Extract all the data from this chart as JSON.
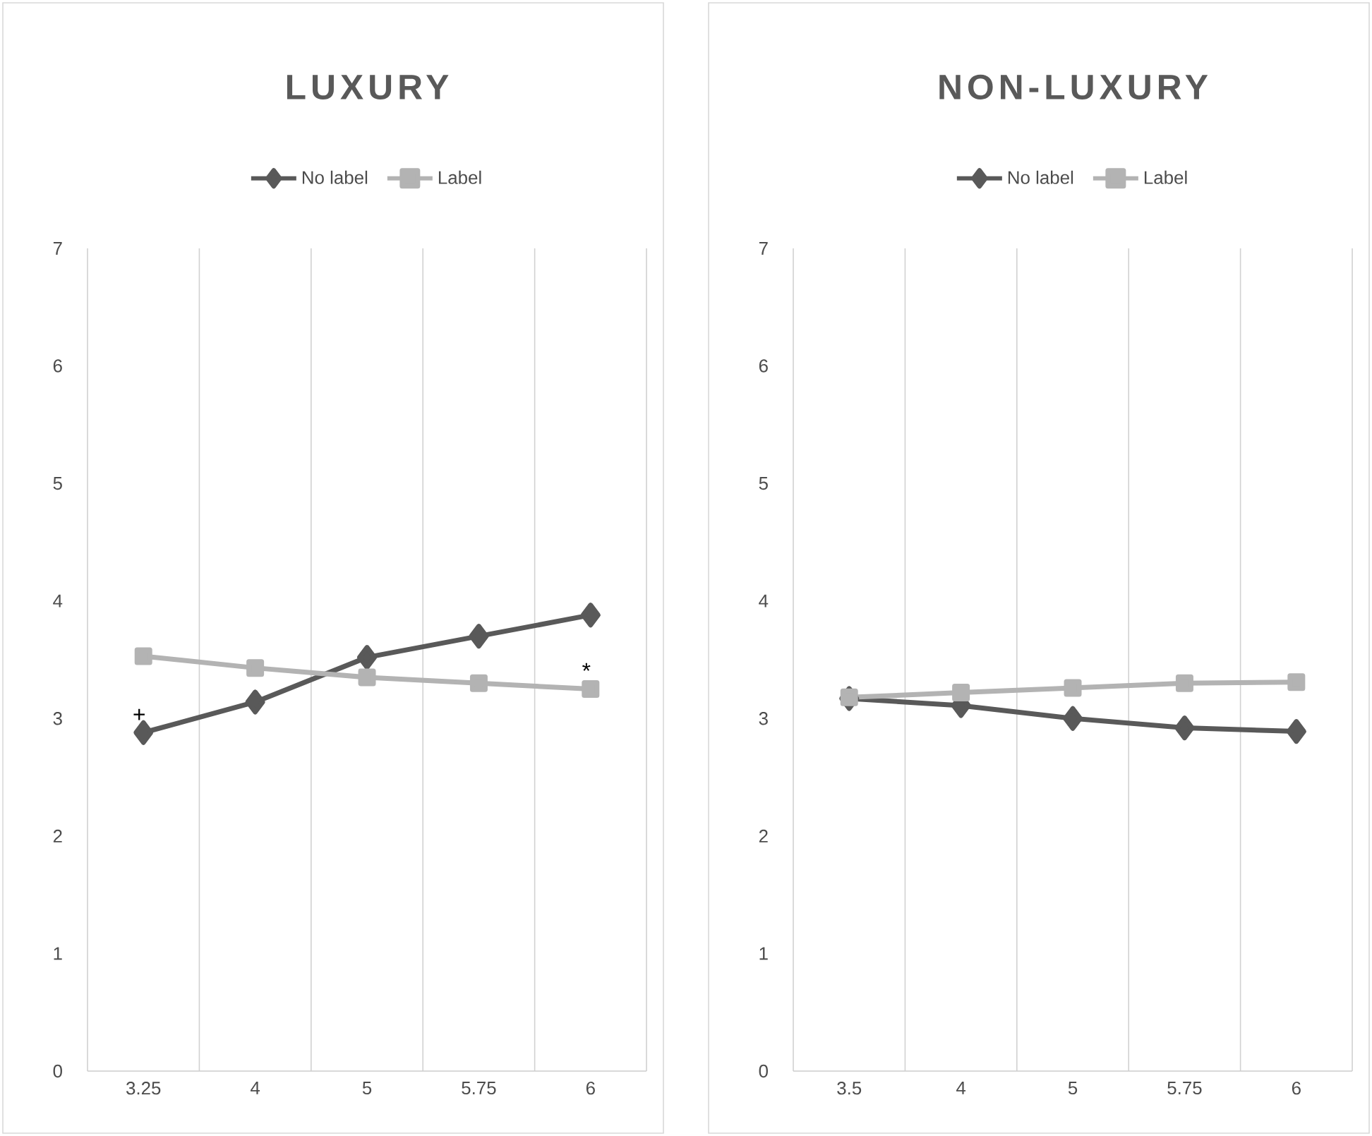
{
  "chart_data": [
    {
      "type": "line",
      "title": "LUXURY",
      "categories": [
        "3.25",
        "4",
        "5",
        "5.75",
        "6"
      ],
      "series": [
        {
          "name": "No label",
          "color": "#595959",
          "marker": "diamond",
          "values": [
            2.88,
            3.14,
            3.52,
            3.7,
            3.88
          ]
        },
        {
          "name": "Label",
          "color": "#b3b3b3",
          "marker": "square",
          "values": [
            3.53,
            3.43,
            3.35,
            3.3,
            3.25
          ]
        }
      ],
      "ylim": [
        0,
        7
      ],
      "yticks": [
        0,
        1,
        2,
        3,
        4,
        5,
        6,
        7
      ],
      "grid": "x",
      "legend": "top",
      "annotations": [
        {
          "text": "+",
          "x": "3.25",
          "y": 2.88
        },
        {
          "text": "*",
          "x": "6",
          "y": 3.25
        }
      ]
    },
    {
      "type": "line",
      "title": "NON-LUXURY",
      "categories": [
        "3.5",
        "4",
        "5",
        "5.75",
        "6"
      ],
      "series": [
        {
          "name": "No label",
          "color": "#595959",
          "marker": "diamond",
          "values": [
            3.17,
            3.11,
            3.0,
            2.92,
            2.89
          ]
        },
        {
          "name": "Label",
          "color": "#b3b3b3",
          "marker": "square",
          "values": [
            3.18,
            3.22,
            3.26,
            3.3,
            3.31
          ]
        }
      ],
      "ylim": [
        0,
        7
      ],
      "yticks": [
        0,
        1,
        2,
        3,
        4,
        5,
        6,
        7
      ],
      "grid": "x",
      "legend": "top"
    }
  ]
}
